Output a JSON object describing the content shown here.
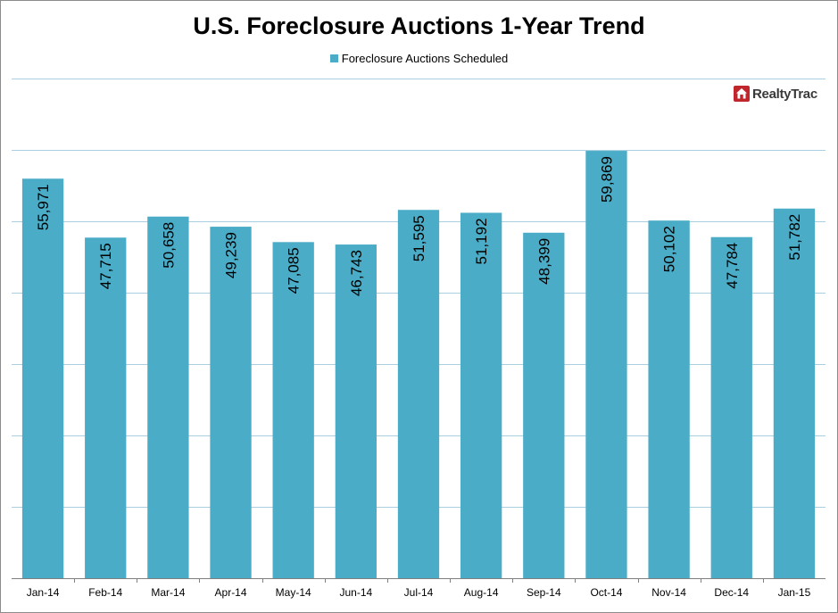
{
  "colors": {
    "bar": "#4aacc6",
    "grid": "#a9cfe0",
    "axis": "#7f7f7f"
  },
  "legend_icon": "square-swatch",
  "logo": {
    "text": "RealtyTrac",
    "icon": "house-icon",
    "color": "#c0272d"
  },
  "chart_data": {
    "type": "bar",
    "title": "U.S. Foreclosure Auctions 1-Year Trend",
    "xlabel": "",
    "ylabel": "",
    "legend_position": "top",
    "grid": true,
    "categories": [
      "Jan-14",
      "Feb-14",
      "Mar-14",
      "Apr-14",
      "May-14",
      "Jun-14",
      "Jul-14",
      "Aug-14",
      "Sep-14",
      "Oct-14",
      "Nov-14",
      "Dec-14",
      "Jan-15"
    ],
    "data_labels": [
      "55,971",
      "47,715",
      "50,658",
      "49,239",
      "47,085",
      "46,743",
      "51,595",
      "51,192",
      "48,399",
      "59,869",
      "50,102",
      "47,784",
      "51,782"
    ],
    "series": [
      {
        "name": "Foreclosure Auctions Scheduled",
        "values": [
          55971,
          47715,
          50658,
          49239,
          47085,
          46743,
          51595,
          51192,
          48399,
          59869,
          50102,
          47784,
          51782
        ]
      }
    ],
    "ylim": [
      0,
      70000
    ],
    "ytick_step": 10000
  }
}
